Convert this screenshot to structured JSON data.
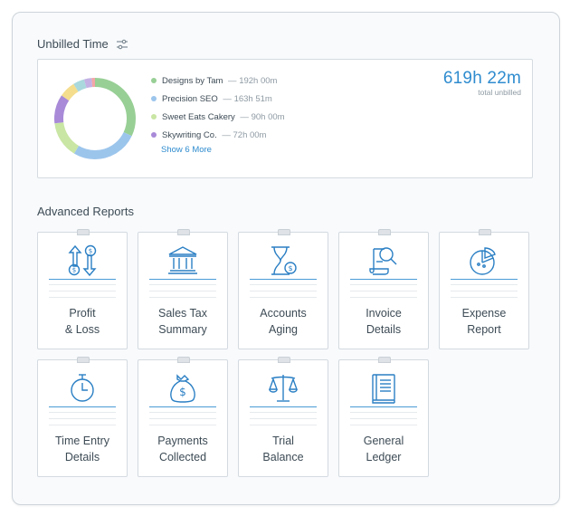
{
  "unbilled": {
    "title": "Unbilled Time",
    "total_value": "619h 22m",
    "total_label": "total unbilled",
    "show_more": "Show 6 More",
    "clients": [
      {
        "name": "Designs by Tam",
        "hours": "192h 00m",
        "color": "#98cf95"
      },
      {
        "name": "Precision SEO",
        "hours": "163h 51m",
        "color": "#9cc5ec"
      },
      {
        "name": "Sweet Eats Cakery",
        "hours": "90h 00m",
        "color": "#c9e6a4"
      },
      {
        "name": "Skywriting Co.",
        "hours": "72h 00m",
        "color": "#a88ad8"
      }
    ],
    "donut_segments": [
      {
        "fraction": 0.32,
        "color": "#98cf95"
      },
      {
        "fraction": 0.265,
        "color": "#9cc5ec"
      },
      {
        "fraction": 0.145,
        "color": "#c9e6a4"
      },
      {
        "fraction": 0.115,
        "color": "#a88ad8"
      },
      {
        "fraction": 0.065,
        "color": "#f4dd8d"
      },
      {
        "fraction": 0.045,
        "color": "#a9d8dd"
      },
      {
        "fraction": 0.03,
        "color": "#c3b1e4"
      },
      {
        "fraction": 0.015,
        "color": "#f3a6a6"
      }
    ]
  },
  "advanced": {
    "title": "Advanced Reports",
    "reports": [
      {
        "line1": "Profit",
        "line2": "& Loss",
        "icon": "profit-loss-icon"
      },
      {
        "line1": "Sales Tax",
        "line2": "Summary",
        "icon": "bank-icon"
      },
      {
        "line1": "Accounts",
        "line2": "Aging",
        "icon": "hourglass-icon"
      },
      {
        "line1": "Invoice",
        "line2": "Details",
        "icon": "invoice-magnifier-icon"
      },
      {
        "line1": "Expense",
        "line2": "Report",
        "icon": "pie-chart-icon"
      },
      {
        "line1": "Time Entry",
        "line2": "Details",
        "icon": "stopwatch-icon"
      },
      {
        "line1": "Payments",
        "line2": "Collected",
        "icon": "money-bag-icon"
      },
      {
        "line1": "Trial",
        "line2": "Balance",
        "icon": "scales-icon"
      },
      {
        "line1": "General",
        "line2": "Ledger",
        "icon": "ledger-book-icon"
      }
    ]
  },
  "colors": {
    "accent": "#2f8ccf",
    "icon_blue": "#2a7fc4"
  }
}
